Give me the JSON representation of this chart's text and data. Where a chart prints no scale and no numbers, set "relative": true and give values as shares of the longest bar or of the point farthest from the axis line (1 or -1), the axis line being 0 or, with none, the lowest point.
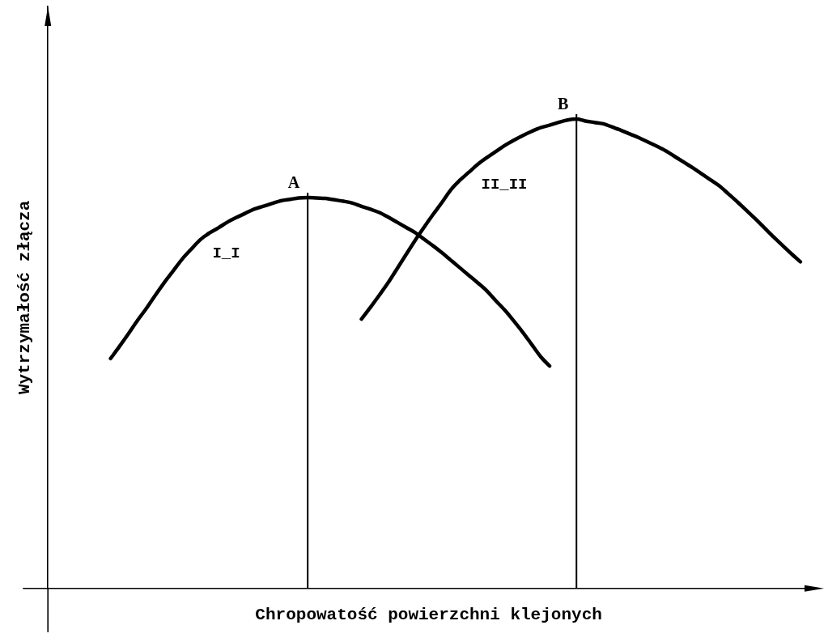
{
  "chart_data": {
    "type": "line",
    "relative": true,
    "categories": [
      null,
      null,
      null,
      null,
      null,
      null,
      null,
      null,
      null,
      null,
      null,
      null,
      null,
      null,
      null,
      null,
      null,
      null,
      null,
      null,
      null,
      null,
      null,
      null,
      null,
      null,
      null,
      null,
      null,
      null,
      null,
      null,
      null,
      null,
      null,
      null,
      null,
      null,
      null,
      null,
      null,
      null,
      null,
      null,
      null,
      null,
      null,
      null,
      null,
      null,
      null,
      null,
      null,
      null,
      null,
      null,
      null,
      null,
      null,
      null,
      null,
      null,
      null,
      null,
      null,
      null,
      null,
      null,
      null,
      null,
      null,
      null,
      null,
      null,
      null,
      null,
      null,
      null,
      null,
      null,
      null,
      null,
      null,
      null,
      null,
      null
    ],
    "series": [
      {
        "name": "I_I",
        "color": "#000000",
        "values": [
          null,
          null,
          null,
          null,
          null,
          null,
          null,
          0.49,
          0.516,
          0.543,
          0.571,
          0.597,
          0.625,
          0.652,
          0.677,
          0.702,
          0.723,
          0.743,
          0.757,
          0.768,
          0.78,
          0.79,
          0.799,
          0.808,
          0.814,
          0.82,
          0.826,
          0.829,
          0.832,
          0.833,
          0.832,
          0.831,
          0.828,
          0.825,
          0.821,
          0.814,
          0.808,
          0.801,
          0.791,
          0.78,
          0.769,
          0.758,
          0.744,
          0.73,
          0.715,
          0.699,
          0.683,
          0.667,
          0.651,
          0.634,
          0.613,
          0.593,
          0.57,
          0.546,
          0.52,
          0.494,
          0.474,
          null,
          null,
          null,
          null,
          null,
          null,
          null,
          null,
          null,
          null,
          null,
          null,
          null,
          null,
          null,
          null,
          null,
          null,
          null,
          null,
          null,
          null,
          null,
          null,
          null,
          null,
          null,
          null,
          null
        ]
      },
      {
        "name": "II_II",
        "color": "#000000",
        "values": [
          null,
          null,
          null,
          null,
          null,
          null,
          null,
          null,
          null,
          null,
          null,
          null,
          null,
          null,
          null,
          null,
          null,
          null,
          null,
          null,
          null,
          null,
          null,
          null,
          null,
          null,
          null,
          null,
          null,
          null,
          null,
          null,
          null,
          null,
          null,
          0.574,
          0.599,
          0.625,
          0.652,
          0.682,
          0.712,
          0.742,
          0.77,
          0.797,
          0.823,
          0.85,
          0.87,
          0.887,
          0.904,
          0.918,
          0.931,
          0.944,
          0.955,
          0.965,
          0.974,
          0.982,
          0.987,
          0.993,
          0.998,
          1.0,
          0.996,
          0.993,
          0.99,
          0.983,
          0.976,
          0.968,
          0.96,
          0.951,
          0.942,
          0.932,
          0.92,
          0.908,
          0.896,
          0.883,
          0.87,
          0.857,
          0.84,
          0.823,
          0.805,
          0.787,
          0.768,
          0.749,
          0.731,
          0.713,
          0.696,
          null
        ]
      }
    ],
    "xlabel": "Chropowatość powierzchni klejonych",
    "ylabel": "Wytrzymałość złącza",
    "annotations": [
      "A",
      "B"
    ],
    "legend": false,
    "grid": false,
    "tick_labels": false,
    "marker": "none",
    "line_style": "solid"
  }
}
